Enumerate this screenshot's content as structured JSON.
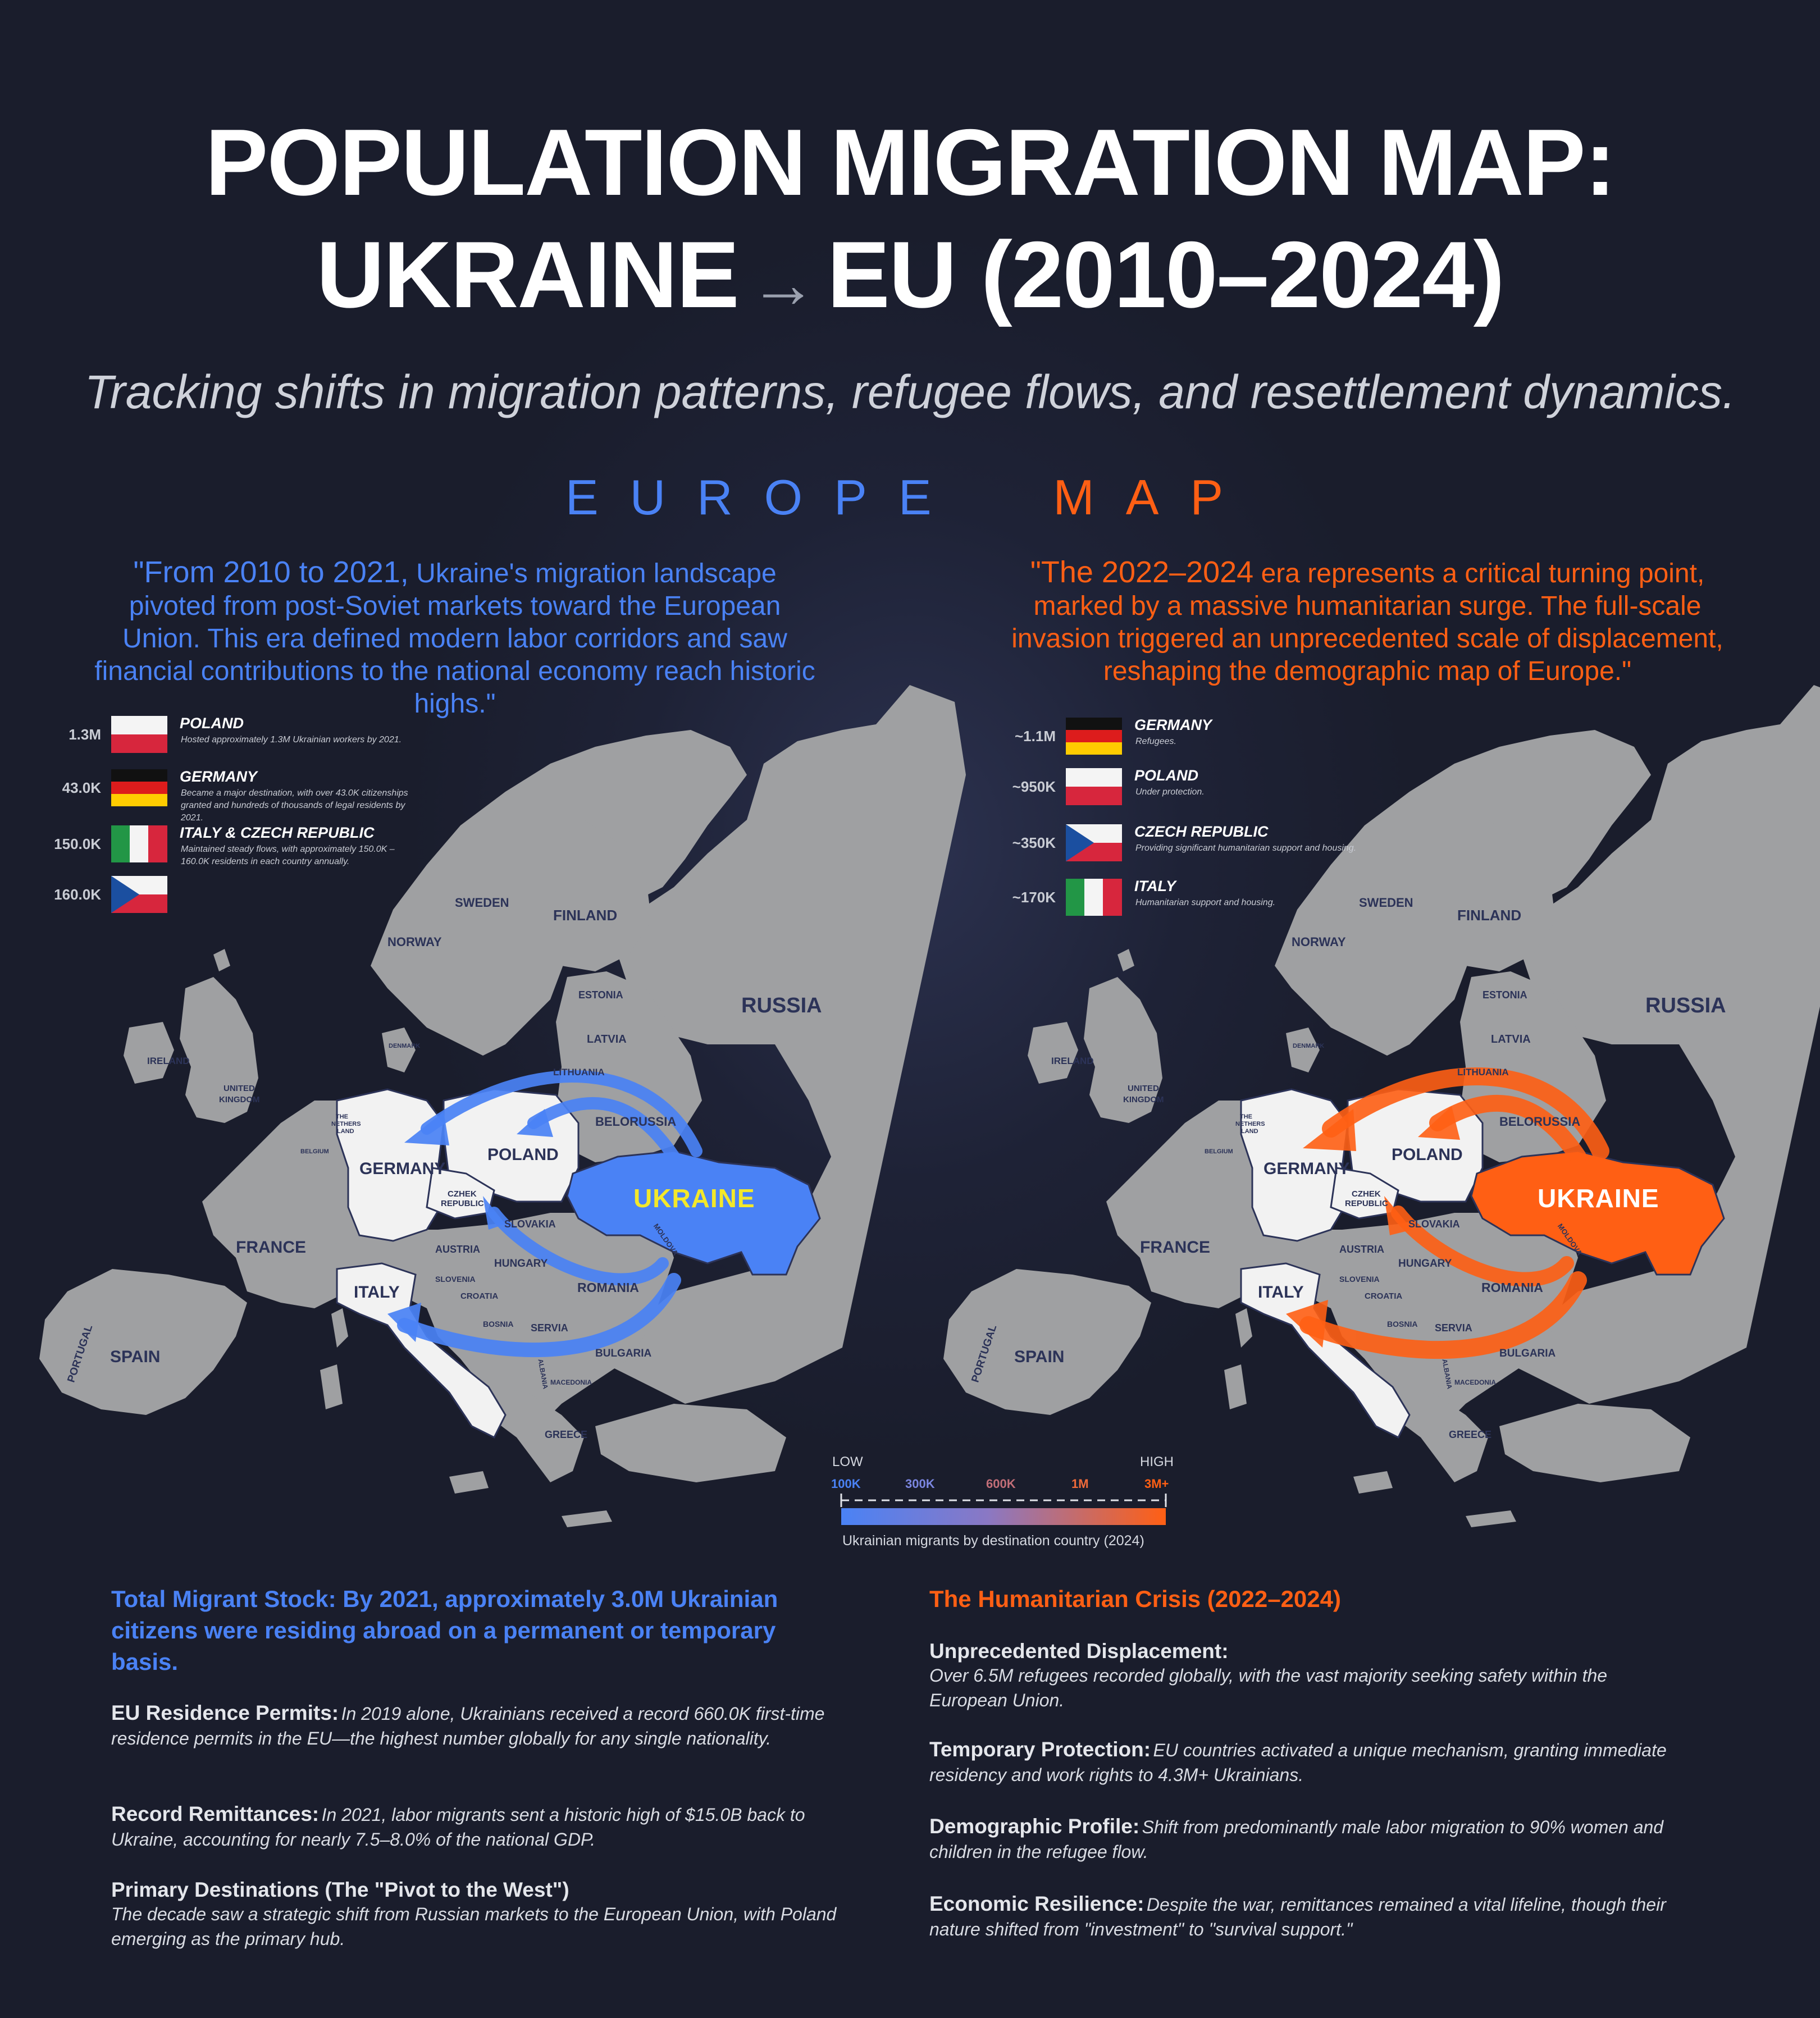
{
  "header": {
    "title_line1": "POPULATION MIGRATION MAP:",
    "title_line2_left": "UKRAINE",
    "title_arrow": "→",
    "title_line2_right": "EU (2010–2024)",
    "subtitle": "Tracking shifts in migration patterns, refugee flows, and resettlement dynamics.",
    "map_heading_left": "EUROPE",
    "map_heading_right": "MAP"
  },
  "colors": {
    "blue": "#4a82f5",
    "orange": "#ff5f14",
    "land": "#9fa0a2",
    "highlight": "#f2f2f2",
    "label": "#2c3358",
    "ukraine_label_left": "#f3e82a"
  },
  "left_panel": {
    "quote_lead": "\"From 2010 to 2021,",
    "quote_body": "Ukraine's migration landscape pivoted from post-Soviet markets toward the European Union. This era defined modern labor corridors and saw financial contributions to the national economy reach historic highs.\"",
    "legend": [
      {
        "value": "1.3M",
        "flag": "poland",
        "name": "POLAND",
        "desc": "Hosted approximately 1.3M Ukrainian workers by 2021."
      },
      {
        "value": "43.0K",
        "flag": "germany",
        "name": "GERMANY",
        "desc": "Became a major destination, with over 43.0K citizenships granted and hundreds of thousands of legal residents by 2021."
      },
      {
        "value": "150.0K",
        "flag": "italy",
        "name": "ITALY & CZECH REPUBLIC",
        "desc": "Maintained steady flows, with approximately 150.0K – 160.0K residents in each country annually."
      },
      {
        "value": "160.0K",
        "flag": "czech",
        "name": "",
        "desc": ""
      }
    ]
  },
  "right_panel": {
    "quote_lead": "\"The 2022–2024",
    "quote_body": "era represents a critical turning point, marked by a massive humanitarian surge. The full-scale invasion triggered an unprecedented scale of displacement, reshaping the demographic map of Europe.\"",
    "legend": [
      {
        "value": "~1.1M",
        "flag": "germany",
        "name": "GERMANY",
        "desc": "Refugees."
      },
      {
        "value": "~950K",
        "flag": "poland",
        "name": "POLAND",
        "desc": "Under protection."
      },
      {
        "value": "~350K",
        "flag": "czech",
        "name": "CZECH REPUBLIC",
        "desc": "Providing significant humanitarian support and housing."
      },
      {
        "value": "~170K",
        "flag": "italy",
        "name": "ITALY",
        "desc": "Humanitarian support and housing."
      }
    ]
  },
  "map_labels": {
    "ukraine": "UKRAINE",
    "germany": "GERMANY",
    "poland": "POLAND",
    "italy": "ITALY",
    "france": "FRANCE",
    "spain": "SPAIN",
    "portugal": "PORTUGAL",
    "russia": "RUSSIA",
    "sweden": "SWEDEN",
    "norway": "NORWAY",
    "finland": "FINLAND",
    "estonia": "ESTONIA",
    "latvia": "LATVIA",
    "lithuania": "LITHUANIA",
    "belorussia": "BELORUSSIA",
    "ireland": "IRELAND",
    "uk_line1": "UNITED",
    "uk_line2": "KINGDOM",
    "denmark": "DENMARK",
    "netherlands_line1": "THE",
    "netherlands_line2": "NETHERS",
    "netherlands_line3": "LAND",
    "belgium": "BELGIUM",
    "czech_line1": "CZHEK",
    "czech_line2": "REPUBLIC",
    "slovakia": "SLOVAKIA",
    "austria": "AUSTRIA",
    "hungary": "HUNGARY",
    "romania": "ROMANIA",
    "moldova": "MOLDOVA",
    "slovenia": "SLOVENIA",
    "croatia": "CROATIA",
    "bosnia": "BOSNIA",
    "servia": "SERVIA",
    "bulgaria": "BULGARIA",
    "albania": "ALBANIA",
    "macedonia": "MACEDONIA",
    "greece": "GREECE"
  },
  "scale": {
    "low": "LOW",
    "high": "HIGH",
    "ticks": [
      "100K",
      "300K",
      "600K",
      "1M",
      "3M+"
    ],
    "caption": "Ukrainian migrants by destination country (2024)"
  },
  "bottom_left": {
    "headline": "Total Migrant Stock: By 2021, approximately 3.0M Ukrainian citizens were residing abroad on a permanent or temporary basis.",
    "items": [
      {
        "head": "EU Residence Permits:",
        "body": "In 2019 alone, Ukrainians received a record 660.0K first-time residence permits in the EU—the highest number globally for any single nationality."
      },
      {
        "head": "Record Remittances:",
        "body": "In 2021, labor migrants sent a historic high of $15.0B back to Ukraine, accounting for nearly 7.5–8.0% of the national GDP."
      },
      {
        "head": "Primary Destinations (The \"Pivot to the West\")",
        "body": "The decade saw a strategic shift from Russian markets to the European Union, with Poland emerging as the primary hub."
      }
    ]
  },
  "bottom_right": {
    "headline": "The Humanitarian Crisis (2022–2024)",
    "items": [
      {
        "head": "Unprecedented Displacement:",
        "body": "Over 6.5M refugees recorded globally, with the vast majority seeking safety within the European Union."
      },
      {
        "head": "Temporary Protection:",
        "body": "EU countries activated a unique mechanism, granting immediate residency and work rights to 4.3M+ Ukrainians."
      },
      {
        "head": "Demographic Profile:",
        "body": "Shift from predominantly male labor migration to 90% women and children in the refugee flow."
      },
      {
        "head": "Economic Resilience:",
        "body": "Despite the war, remittances remained a vital lifeline, though their nature shifted from \"investment\" to \"survival support.\""
      }
    ]
  }
}
